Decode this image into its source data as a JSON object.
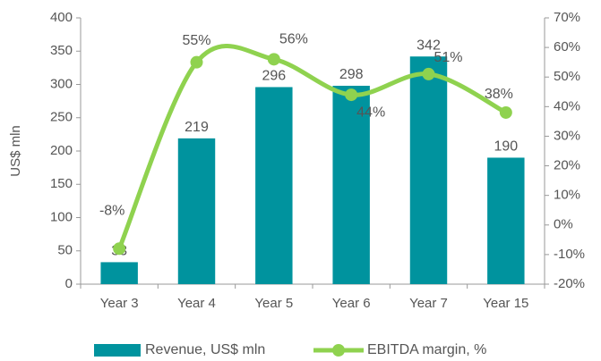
{
  "chart_data": {
    "type": "bar",
    "y_label": "US$ mln",
    "categories": [
      "Year 3",
      "Year 4",
      "Year 5",
      "Year 6",
      "Year 7",
      "Year 15"
    ],
    "series": [
      {
        "name": "Revenue, US$ mln",
        "color": "#00939e",
        "type": "bar",
        "axis": "y",
        "values": [
          33,
          219,
          296,
          298,
          342,
          190
        ]
      },
      {
        "name": "EBITDA margin, %",
        "color": "#8fd24f",
        "type": "line",
        "axis": "y2",
        "values": [
          -8,
          55,
          56,
          44,
          51,
          38
        ],
        "value_labels": [
          "-8%",
          "55%",
          "56%",
          "44%",
          "51%",
          "38%"
        ]
      }
    ],
    "ylim": [
      0,
      400
    ],
    "yticks": [
      0,
      50,
      100,
      150,
      200,
      250,
      300,
      350,
      400
    ],
    "y2lim": [
      -20,
      70
    ],
    "y2ticks": [
      {
        "value": -20,
        "label": "-20%"
      },
      {
        "value": -10,
        "label": "-10%"
      },
      {
        "value": 0,
        "label": "0%"
      },
      {
        "value": 10,
        "label": "10%"
      },
      {
        "value": 20,
        "label": "20%"
      },
      {
        "value": 30,
        "label": "30%"
      },
      {
        "value": 40,
        "label": "40%"
      },
      {
        "value": 50,
        "label": "50%"
      },
      {
        "value": 60,
        "label": "60%"
      },
      {
        "value": 70,
        "label": "70%"
      }
    ],
    "legend": "bottom"
  }
}
